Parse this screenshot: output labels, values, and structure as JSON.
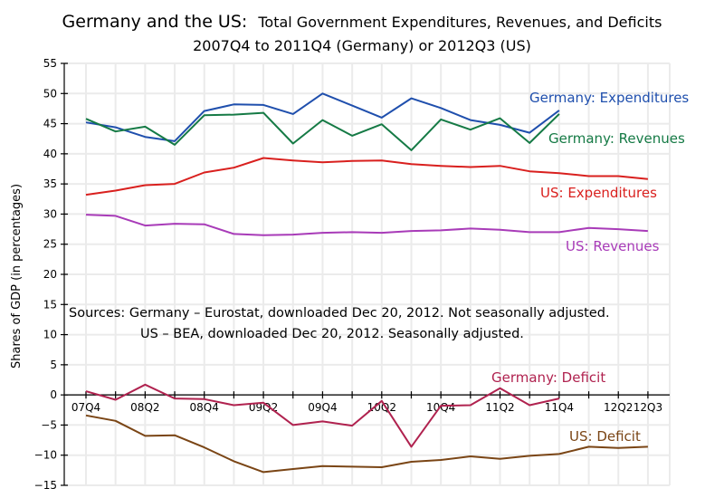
{
  "chart_data": {
    "type": "line",
    "title": "Germany and the US:  Total Government Expenditures, Revenues, and Deficits",
    "title_lead": "Germany and the US:",
    "title_rest": "Total Government Expenditures, Revenues, and Deficits",
    "subtitle": "2007Q4 to 2011Q4 (Germany) or 2012Q3 (US)",
    "xlabel": "",
    "ylabel": "Shares of GDP (in percentages)",
    "ylim": [
      -15,
      55
    ],
    "yticks": [
      55,
      50,
      45,
      40,
      35,
      30,
      25,
      20,
      15,
      10,
      5,
      0,
      -5,
      -10,
      -15
    ],
    "ytick_labels": [
      "55",
      "50",
      "45",
      "40",
      "35",
      "30",
      "25",
      "20",
      "15",
      "10",
      "5",
      "0",
      "−5",
      "−10",
      "−15"
    ],
    "grid": true,
    "x": [
      "07Q4",
      "08Q1",
      "08Q2",
      "08Q3",
      "08Q4",
      "09Q1",
      "09Q2",
      "09Q3",
      "09Q4",
      "10Q1",
      "10Q2",
      "10Q3",
      "10Q4",
      "11Q1",
      "11Q2",
      "11Q3",
      "11Q4",
      "12Q1",
      "12Q2",
      "12Q3"
    ],
    "xtick_labels": [
      {
        "index": 0,
        "label": "07Q4"
      },
      {
        "index": 2,
        "label": "08Q2"
      },
      {
        "index": 4,
        "label": "08Q4"
      },
      {
        "index": 6,
        "label": "09Q2"
      },
      {
        "index": 8,
        "label": "09Q4"
      },
      {
        "index": 10,
        "label": "10Q2"
      },
      {
        "index": 12,
        "label": "10Q4"
      },
      {
        "index": 14,
        "label": "11Q2"
      },
      {
        "index": 16,
        "label": "11Q4"
      },
      {
        "index": 18,
        "label": "12Q2"
      },
      {
        "index": 19,
        "label": "12Q3"
      }
    ],
    "series": [
      {
        "name": "Germany:  Expenditures",
        "color": "#1f4fad",
        "values": [
          45.2,
          44.4,
          42.8,
          42.1,
          47.1,
          48.2,
          48.1,
          46.6,
          50.0,
          48.0,
          46.0,
          49.2,
          47.6,
          45.6,
          44.8,
          43.5,
          47.2,
          null,
          null,
          null
        ]
      },
      {
        "name": "Germany:  Revenues",
        "color": "#157a45",
        "values": [
          45.8,
          43.7,
          44.5,
          41.5,
          46.4,
          46.5,
          46.8,
          41.7,
          45.6,
          43.0,
          44.9,
          40.6,
          45.7,
          44.0,
          45.9,
          41.8,
          46.6,
          null,
          null,
          null
        ]
      },
      {
        "name": "US:  Expenditures",
        "color": "#d9201e",
        "values": [
          33.2,
          33.9,
          34.8,
          35.0,
          36.9,
          37.7,
          39.3,
          38.9,
          38.6,
          38.8,
          38.9,
          38.3,
          38.0,
          37.8,
          38.0,
          37.1,
          36.8,
          36.3,
          36.3,
          35.8
        ]
      },
      {
        "name": "US:  Revenues",
        "color": "#a83bb8",
        "values": [
          29.9,
          29.7,
          28.1,
          28.4,
          28.3,
          26.7,
          26.5,
          26.6,
          26.9,
          27.0,
          26.9,
          27.2,
          27.3,
          27.6,
          27.4,
          27.0,
          27.0,
          27.7,
          27.5,
          27.2
        ]
      },
      {
        "name": "Germany:  Deficit",
        "color": "#b0224f",
        "values": [
          0.6,
          -0.8,
          1.7,
          -0.6,
          -0.7,
          -1.7,
          -1.3,
          -5.0,
          -4.4,
          -5.1,
          -1.0,
          -8.6,
          -1.8,
          -1.7,
          1.1,
          -1.7,
          -0.6,
          null,
          null,
          null
        ]
      },
      {
        "name": "US:  Deficit",
        "color": "#7a4515",
        "values": [
          -3.4,
          -4.3,
          -6.8,
          -6.7,
          -8.7,
          -11.0,
          -12.8,
          -12.3,
          -11.8,
          -11.9,
          -12.0,
          -11.1,
          -10.8,
          -10.2,
          -10.6,
          -10.1,
          -9.8,
          -8.6,
          -8.8,
          -8.6
        ]
      }
    ],
    "series_labels": [
      {
        "series": 0,
        "text": "Germany:  Expenditures"
      },
      {
        "series": 1,
        "text": "Germany:  Revenues"
      },
      {
        "series": 2,
        "text": "US:  Expenditures"
      },
      {
        "series": 3,
        "text": "US:  Revenues"
      },
      {
        "series": 4,
        "text": "Germany:  Deficit"
      },
      {
        "series": 5,
        "text": "US:  Deficit"
      }
    ],
    "annotations": [
      "Sources:  Germany – Eurostat, downloaded Dec 20, 2012.  Not seasonally adjusted.",
      "US – BEA, downloaded Dec 20, 2012.  Seasonally adjusted."
    ]
  }
}
